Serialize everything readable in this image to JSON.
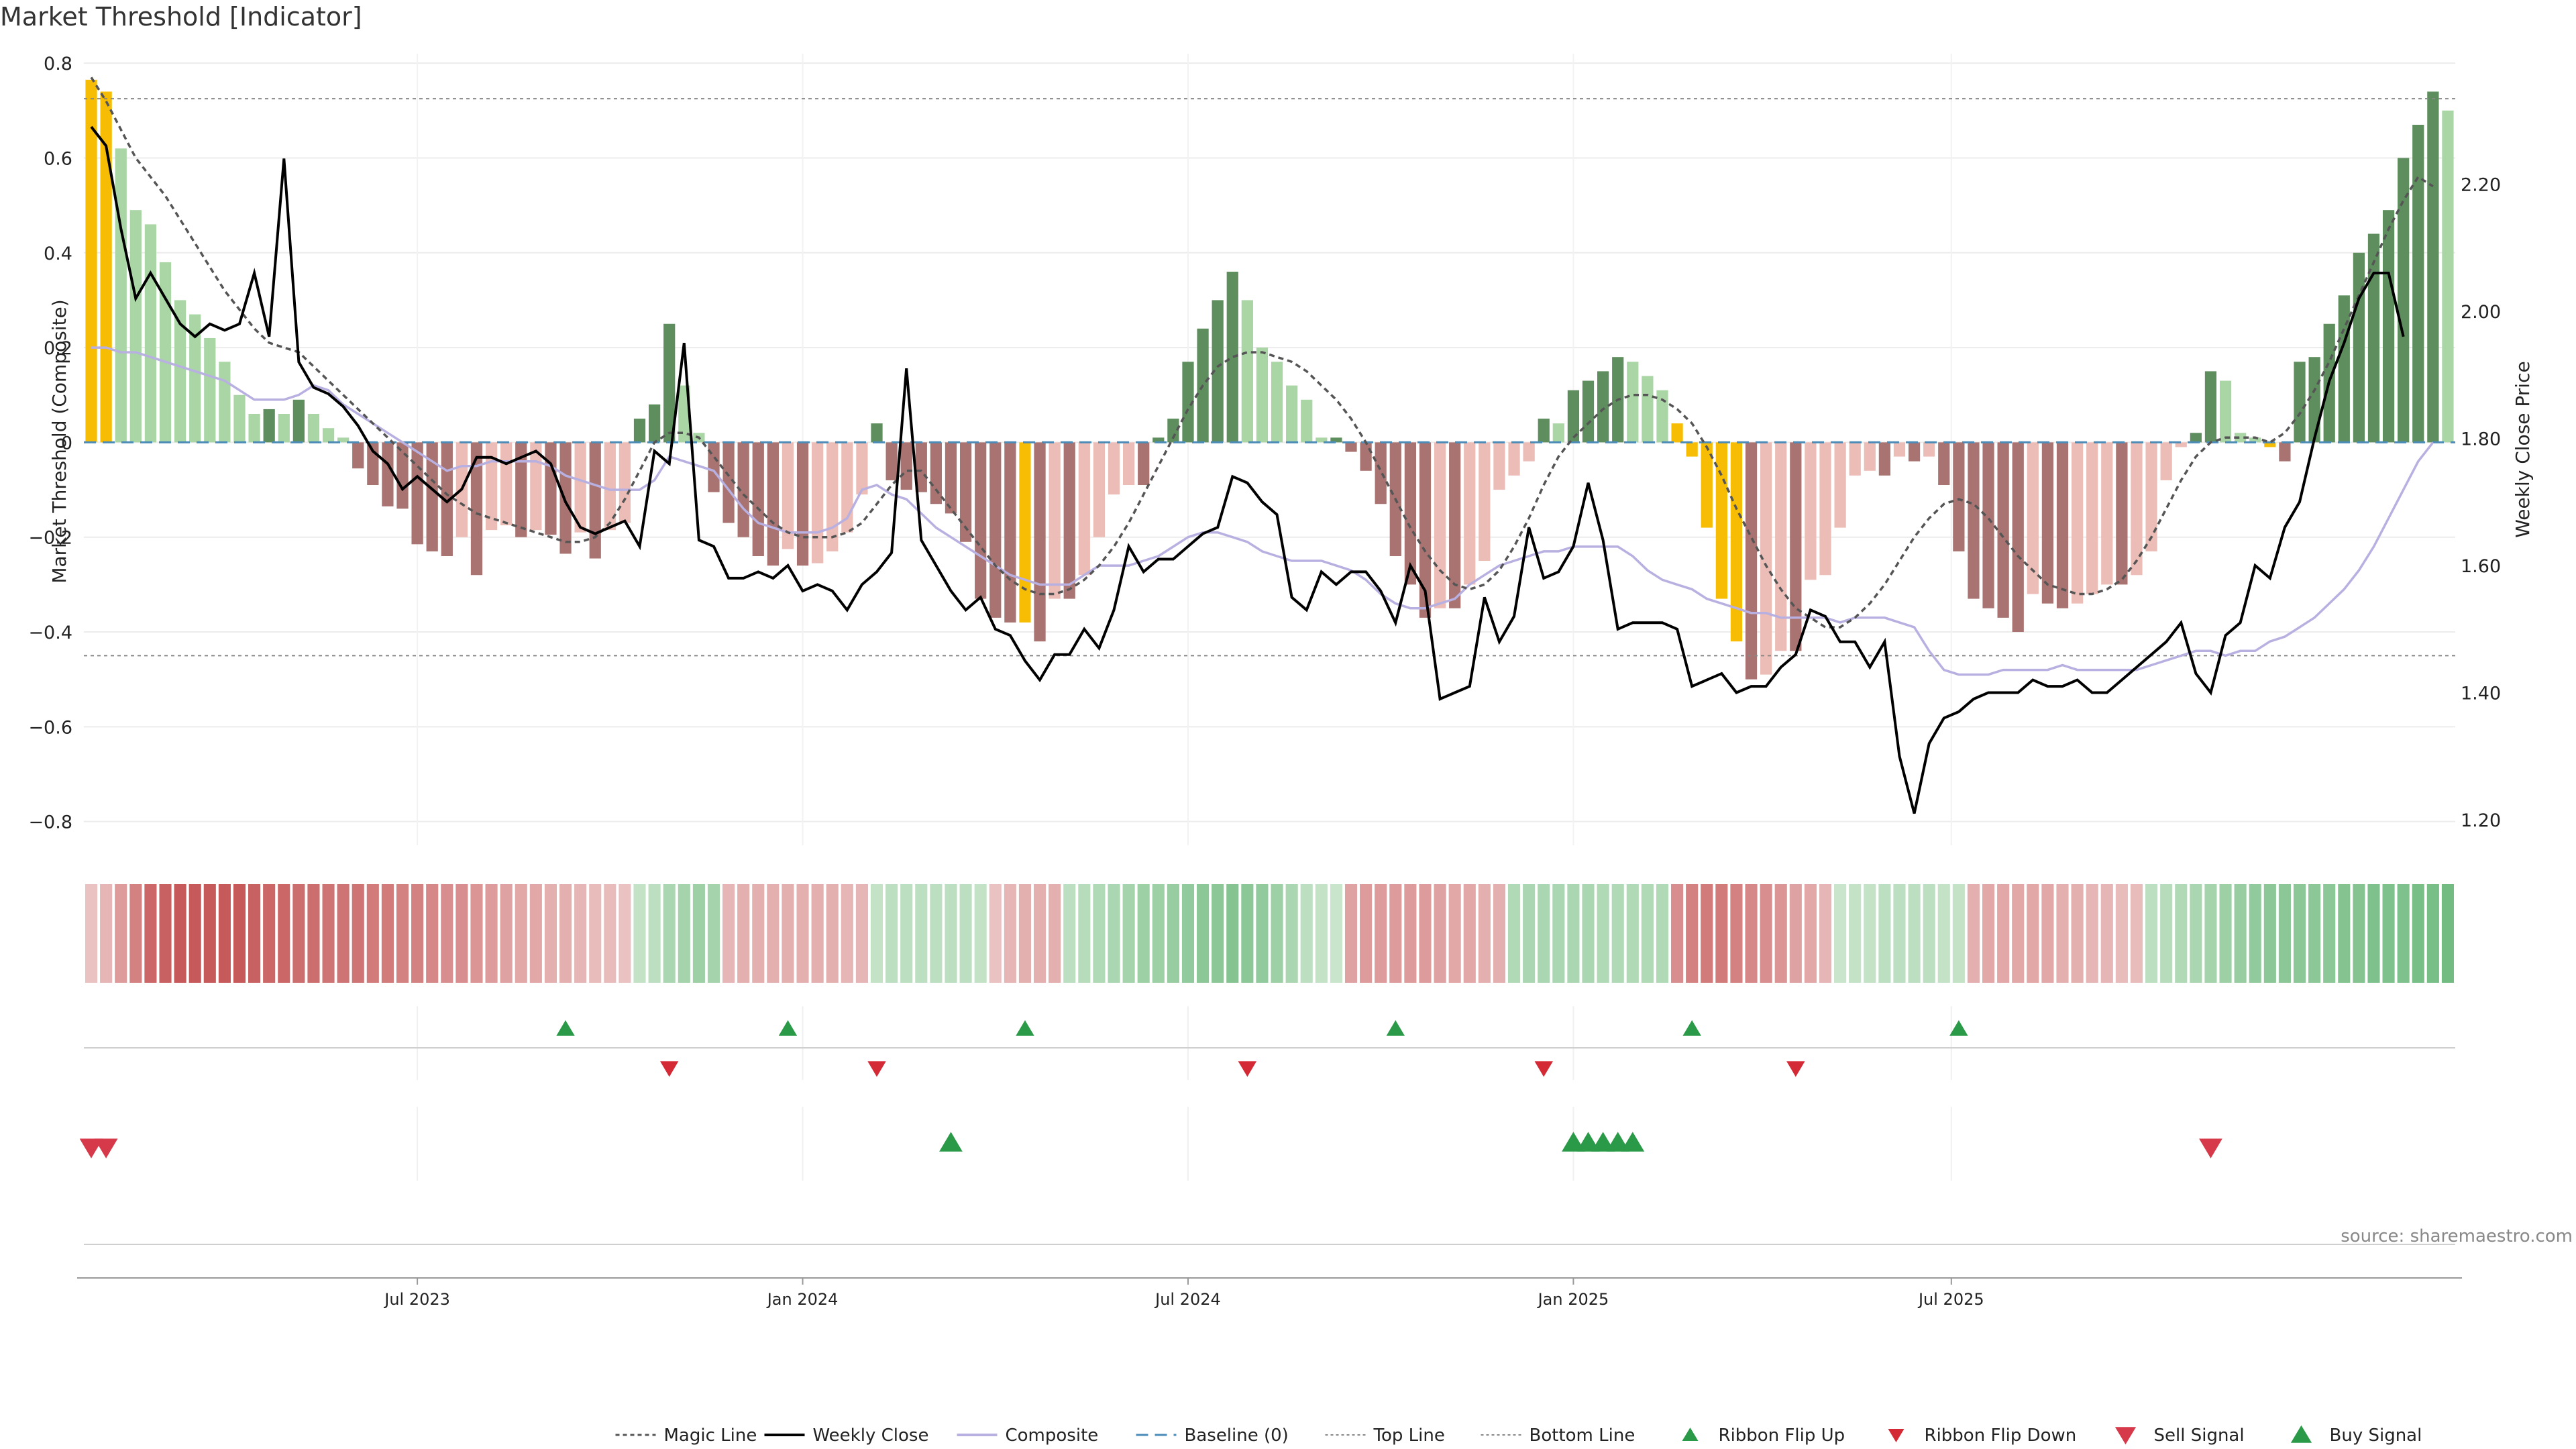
{
  "chart_data": {
    "type": "bar",
    "title": "Market Threshold [Indicator]",
    "ylabel": "Market Threshold (Composite)",
    "ylabel_right": "Weekly Close Price",
    "source": "source: sharemaestro.com",
    "ylim": [
      -0.85,
      0.82
    ],
    "ylim_right": [
      1.16,
      2.405
    ],
    "yticks": [
      {
        "v": 0.8,
        "label": "0.8"
      },
      {
        "v": 0.6,
        "label": "0.6"
      },
      {
        "v": 0.4,
        "label": "0.4"
      },
      {
        "v": 0.2,
        "label": "0.2"
      },
      {
        "v": 0,
        "label": "0"
      },
      {
        "v": -0.2,
        "label": "−0.2"
      },
      {
        "v": -0.4,
        "label": "−0.4"
      },
      {
        "v": -0.6,
        "label": "−0.6"
      },
      {
        "v": -0.8,
        "label": "−0.8"
      }
    ],
    "yticks_right": [
      {
        "v": 2.2,
        "label": "2.20"
      },
      {
        "v": 2.0,
        "label": "2.00"
      },
      {
        "v": 1.8,
        "label": "1.80"
      },
      {
        "v": 1.6,
        "label": "1.60"
      },
      {
        "v": 1.4,
        "label": "1.40"
      },
      {
        "v": 1.2,
        "label": "1.20"
      }
    ],
    "xticks": [
      {
        "week": 22,
        "label": "Jul 2023"
      },
      {
        "week": 48,
        "label": "Jan 2024"
      },
      {
        "week": 74,
        "label": "Jul 2024"
      },
      {
        "week": 100,
        "label": "Jan 2025"
      },
      {
        "week": 125.5,
        "label": "Jul 2025"
      }
    ],
    "top_line": 0.725,
    "bottom_line": -0.45,
    "composite": [
      0.765,
      0.74,
      0.62,
      0.49,
      0.46,
      0.38,
      0.3,
      0.27,
      0.22,
      0.17,
      0.1,
      0.06,
      0.07,
      0.06,
      0.09,
      0.06,
      0.03,
      0.01,
      -0.055,
      -0.09,
      -0.135,
      -0.14,
      -0.215,
      -0.23,
      -0.24,
      -0.2,
      -0.28,
      -0.185,
      -0.175,
      -0.2,
      -0.185,
      -0.195,
      -0.235,
      -0.19,
      -0.245,
      -0.185,
      -0.17,
      0.05,
      0.08,
      0.25,
      0.12,
      0.02,
      -0.105,
      -0.17,
      -0.2,
      -0.24,
      -0.26,
      -0.225,
      -0.26,
      -0.255,
      -0.23,
      -0.19,
      -0.11,
      0.04,
      -0.08,
      -0.1,
      -0.105,
      -0.13,
      -0.15,
      -0.21,
      -0.33,
      -0.37,
      -0.38,
      -0.38,
      -0.42,
      -0.33,
      -0.33,
      -0.28,
      -0.2,
      -0.11,
      -0.09,
      -0.09,
      0.01,
      0.05,
      0.17,
      0.24,
      0.3,
      0.36,
      0.3,
      0.2,
      0.17,
      0.12,
      0.09,
      0.01,
      0.01,
      -0.02,
      -0.06,
      -0.13,
      -0.24,
      -0.3,
      -0.37,
      -0.35,
      -0.35,
      -0.3,
      -0.25,
      -0.1,
      -0.07,
      -0.04,
      0.05,
      0.04,
      0.11,
      0.13,
      0.15,
      0.18,
      0.17,
      0.14,
      0.11,
      0.04,
      -0.03,
      -0.18,
      -0.33,
      -0.42,
      -0.5,
      -0.49,
      -0.44,
      -0.44,
      -0.29,
      -0.28,
      -0.18,
      -0.07,
      -0.06,
      -0.07,
      -0.03,
      -0.04,
      -0.03,
      -0.09,
      -0.23,
      -0.33,
      -0.35,
      -0.37,
      -0.4,
      -0.32,
      -0.34,
      -0.35,
      -0.34,
      -0.32,
      -0.3,
      -0.3,
      -0.28,
      -0.23,
      -0.08,
      -0.01,
      0.02,
      0.15,
      0.13,
      0.02,
      0.01,
      -0.01,
      -0.04,
      0.17,
      0.18,
      0.25,
      0.31,
      0.4,
      0.44,
      0.49,
      0.6,
      0.67,
      0.74,
      0.7
    ],
    "highlight_bars": [
      0,
      1,
      63,
      107,
      108,
      109,
      110,
      111,
      147
    ],
    "weekly_close": [
      2.29,
      2.26,
      2.13,
      2.02,
      2.06,
      2.02,
      1.98,
      1.96,
      1.98,
      1.97,
      1.98,
      2.06,
      1.96,
      2.24,
      1.92,
      1.88,
      1.87,
      1.85,
      1.82,
      1.78,
      1.76,
      1.72,
      1.74,
      1.72,
      1.7,
      1.72,
      1.77,
      1.77,
      1.76,
      1.77,
      1.78,
      1.76,
      1.7,
      1.66,
      1.65,
      1.66,
      1.67,
      1.63,
      1.78,
      1.76,
      1.95,
      1.64,
      1.63,
      1.58,
      1.58,
      1.59,
      1.58,
      1.6,
      1.56,
      1.57,
      1.56,
      1.53,
      1.57,
      1.59,
      1.62,
      1.91,
      1.64,
      1.6,
      1.56,
      1.53,
      1.55,
      1.5,
      1.49,
      1.45,
      1.42,
      1.46,
      1.46,
      1.5,
      1.47,
      1.53,
      1.63,
      1.59,
      1.61,
      1.61,
      1.63,
      1.65,
      1.66,
      1.74,
      1.73,
      1.7,
      1.68,
      1.55,
      1.53,
      1.59,
      1.57,
      1.59,
      1.59,
      1.56,
      1.51,
      1.6,
      1.56,
      1.39,
      1.4,
      1.41,
      1.55,
      1.48,
      1.52,
      1.66,
      1.58,
      1.59,
      1.63,
      1.73,
      1.64,
      1.5,
      1.51,
      1.51,
      1.51,
      1.5,
      1.41,
      1.42,
      1.43,
      1.4,
      1.41,
      1.41,
      1.44,
      1.46,
      1.53,
      1.52,
      1.48,
      1.48,
      1.44,
      1.48,
      1.3,
      1.21,
      1.32,
      1.36,
      1.37,
      1.39,
      1.4,
      1.4,
      1.4,
      1.42,
      1.41,
      1.41,
      1.42,
      1.4,
      1.4,
      1.42,
      1.44,
      1.46,
      1.48,
      1.51,
      1.43,
      1.4,
      1.49,
      1.51,
      1.6,
      1.58,
      1.66,
      1.7,
      1.8,
      1.89,
      1.95,
      2.02,
      2.06,
      2.06,
      1.96
    ],
    "magic_line_values": [
      0.77,
      0.72,
      0.66,
      0.6,
      0.56,
      0.52,
      0.47,
      0.42,
      0.37,
      0.32,
      0.28,
      0.24,
      0.21,
      0.2,
      0.19,
      0.16,
      0.13,
      0.1,
      0.07,
      0.04,
      0.01,
      -0.02,
      -0.05,
      -0.08,
      -0.11,
      -0.13,
      -0.15,
      -0.16,
      -0.17,
      -0.18,
      -0.19,
      -0.2,
      -0.21,
      -0.21,
      -0.2,
      -0.17,
      -0.12,
      -0.06,
      0.0,
      0.02,
      0.02,
      0.01,
      -0.03,
      -0.07,
      -0.11,
      -0.14,
      -0.17,
      -0.19,
      -0.2,
      -0.2,
      -0.2,
      -0.19,
      -0.17,
      -0.13,
      -0.09,
      -0.06,
      -0.06,
      -0.1,
      -0.14,
      -0.18,
      -0.22,
      -0.26,
      -0.29,
      -0.31,
      -0.32,
      -0.32,
      -0.31,
      -0.29,
      -0.26,
      -0.22,
      -0.17,
      -0.11,
      -0.05,
      0.01,
      0.07,
      0.12,
      0.16,
      0.18,
      0.19,
      0.19,
      0.18,
      0.17,
      0.15,
      0.12,
      0.09,
      0.05,
      0.0,
      -0.06,
      -0.12,
      -0.18,
      -0.23,
      -0.27,
      -0.3,
      -0.31,
      -0.3,
      -0.27,
      -0.22,
      -0.16,
      -0.09,
      -0.03,
      0.01,
      0.04,
      0.07,
      0.09,
      0.1,
      0.1,
      0.09,
      0.07,
      0.04,
      -0.01,
      -0.07,
      -0.14,
      -0.2,
      -0.26,
      -0.31,
      -0.35,
      -0.37,
      -0.39,
      -0.39,
      -0.37,
      -0.34,
      -0.3,
      -0.25,
      -0.2,
      -0.16,
      -0.13,
      -0.12,
      -0.13,
      -0.16,
      -0.2,
      -0.24,
      -0.27,
      -0.3,
      -0.31,
      -0.32,
      -0.32,
      -0.31,
      -0.29,
      -0.25,
      -0.2,
      -0.14,
      -0.08,
      -0.03,
      0.0,
      0.01,
      0.01,
      0.01,
      0.0,
      0.02,
      0.06,
      0.11,
      0.17,
      0.24,
      0.31,
      0.38,
      0.45,
      0.51,
      0.56,
      0.54
    ],
    "composite_line": [
      0.2,
      0.2,
      0.19,
      0.19,
      0.18,
      0.17,
      0.16,
      0.15,
      0.14,
      0.13,
      0.11,
      0.09,
      0.09,
      0.09,
      0.1,
      0.12,
      0.11,
      0.08,
      0.06,
      0.04,
      0.02,
      0.0,
      -0.02,
      -0.04,
      -0.06,
      -0.05,
      -0.05,
      -0.04,
      -0.04,
      -0.04,
      -0.04,
      -0.05,
      -0.07,
      -0.08,
      -0.09,
      -0.1,
      -0.1,
      -0.1,
      -0.08,
      -0.03,
      -0.04,
      -0.05,
      -0.06,
      -0.1,
      -0.14,
      -0.17,
      -0.18,
      -0.19,
      -0.19,
      -0.19,
      -0.18,
      -0.16,
      -0.1,
      -0.09,
      -0.11,
      -0.12,
      -0.15,
      -0.18,
      -0.2,
      -0.22,
      -0.24,
      -0.26,
      -0.28,
      -0.29,
      -0.3,
      -0.3,
      -0.3,
      -0.28,
      -0.26,
      -0.26,
      -0.26,
      -0.25,
      -0.24,
      -0.22,
      -0.2,
      -0.19,
      -0.19,
      -0.2,
      -0.21,
      -0.23,
      -0.24,
      -0.25,
      -0.25,
      -0.25,
      -0.26,
      -0.27,
      -0.29,
      -0.32,
      -0.34,
      -0.35,
      -0.35,
      -0.34,
      -0.33,
      -0.3,
      -0.28,
      -0.26,
      -0.25,
      -0.24,
      -0.23,
      -0.23,
      -0.22,
      -0.22,
      -0.22,
      -0.22,
      -0.24,
      -0.27,
      -0.29,
      -0.3,
      -0.31,
      -0.33,
      -0.34,
      -0.35,
      -0.36,
      -0.36,
      -0.37,
      -0.37,
      -0.37,
      -0.37,
      -0.38,
      -0.37,
      -0.37,
      -0.37,
      -0.38,
      -0.39,
      -0.44,
      -0.48,
      -0.49,
      -0.49,
      -0.49,
      -0.48,
      -0.48,
      -0.48,
      -0.48,
      -0.47,
      -0.48,
      -0.48,
      -0.48,
      -0.48,
      -0.48,
      -0.47,
      -0.46,
      -0.45,
      -0.44,
      -0.44,
      -0.45,
      -0.44,
      -0.44,
      -0.42,
      -0.41,
      -0.39,
      -0.37,
      -0.34,
      -0.31,
      -0.27,
      -0.22,
      -0.16,
      -0.1,
      -0.04,
      0.0
    ],
    "ribbon_values": [
      -0.2,
      -0.3,
      -0.5,
      -0.7,
      -0.9,
      -0.95,
      -1.0,
      -1.0,
      -1.0,
      -1.0,
      -1.0,
      -0.95,
      -0.9,
      -0.9,
      -0.85,
      -0.85,
      -0.8,
      -0.8,
      -0.8,
      -0.75,
      -0.75,
      -0.7,
      -0.7,
      -0.65,
      -0.6,
      -0.6,
      -0.55,
      -0.5,
      -0.45,
      -0.4,
      -0.4,
      -0.35,
      -0.35,
      -0.3,
      -0.25,
      -0.25,
      -0.2,
      0.3,
      0.35,
      0.5,
      0.55,
      0.6,
      0.55,
      -0.3,
      -0.35,
      -0.35,
      -0.35,
      -0.35,
      -0.35,
      -0.35,
      -0.35,
      -0.3,
      -0.3,
      0.3,
      0.35,
      0.35,
      0.35,
      0.35,
      0.35,
      0.35,
      0.3,
      -0.2,
      -0.3,
      -0.35,
      -0.35,
      -0.35,
      0.35,
      0.4,
      0.45,
      0.5,
      0.55,
      0.6,
      0.6,
      0.65,
      0.7,
      0.75,
      0.75,
      0.8,
      0.75,
      0.7,
      0.6,
      0.5,
      0.35,
      0.3,
      0.25,
      -0.45,
      -0.5,
      -0.5,
      -0.5,
      -0.5,
      -0.5,
      -0.45,
      -0.4,
      -0.4,
      -0.35,
      -0.35,
      0.45,
      0.5,
      0.5,
      0.5,
      0.5,
      0.5,
      0.45,
      0.45,
      0.45,
      0.45,
      0.45,
      -0.6,
      -0.7,
      -0.75,
      -0.75,
      -0.7,
      -0.65,
      -0.6,
      -0.55,
      -0.45,
      -0.4,
      -0.3,
      0.25,
      0.3,
      0.3,
      0.35,
      0.35,
      0.35,
      0.35,
      0.3,
      0.3,
      -0.35,
      -0.4,
      -0.4,
      -0.4,
      -0.4,
      -0.4,
      -0.35,
      -0.35,
      -0.3,
      -0.3,
      -0.25,
      -0.25,
      0.35,
      0.4,
      0.45,
      0.5,
      0.55,
      0.6,
      0.65,
      0.7,
      0.75,
      0.75,
      0.75,
      0.75,
      0.75,
      0.8,
      0.8,
      0.85,
      0.85,
      0.85,
      0.9,
      0.9,
      0.95
    ],
    "ribbon_flip_up": [
      32,
      47,
      63,
      88,
      108,
      126
    ],
    "ribbon_flip_down": [
      39,
      53,
      78,
      98,
      115
    ],
    "buy_signal": [
      58,
      100,
      101,
      102,
      103,
      104
    ],
    "sell_signal": [
      0,
      1,
      143
    ],
    "legend": [
      "Magic Line",
      "Weekly Close",
      "Composite",
      "Baseline (0)",
      "Top Line",
      "Bottom Line",
      "Ribbon Flip Up",
      "Ribbon Flip Down",
      "Sell Signal",
      "Buy Signal"
    ],
    "legend_position": "bottom-center",
    "grid": true
  },
  "colors": {
    "pos_dark": "#5e8e5e",
    "pos_light": "#aad6a6",
    "neg_dark": "#a87370",
    "neg_light": "#ecbcb6",
    "highlight": "#f7bd04",
    "close": "#000000",
    "composite_line": "#b8b0e0",
    "magic": "#555555",
    "baseline": "#4a8bb8",
    "flip_up": "#2a9a48",
    "flip_down": "#d42a36",
    "sell": "#d63a4a",
    "buy": "#2a9a48"
  }
}
